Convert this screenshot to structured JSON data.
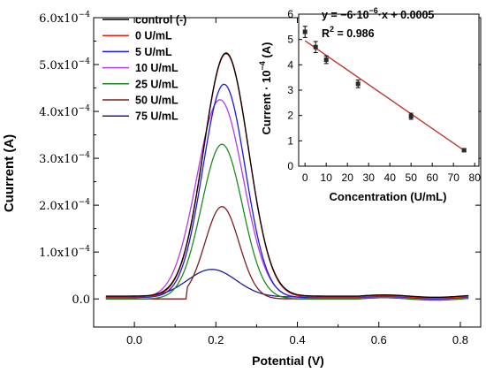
{
  "chart_data": [
    {
      "type": "line",
      "xlabel": "Potential (V)",
      "ylabel": "Cuurrent (A)",
      "xlim": [
        -0.1,
        0.85
      ],
      "ylim": [
        -6e-05,
        0.0006
      ],
      "xticks": [
        0.0,
        0.2,
        0.4,
        0.6,
        0.8
      ],
      "xtick_labels": [
        "0.0",
        "0.2",
        "0.4",
        "0.6",
        "0.8"
      ],
      "yticks": [
        0.0,
        0.0001,
        0.0002,
        0.0003,
        0.0004,
        0.0005,
        0.0006
      ],
      "ytick_labels": [
        {
          "mantissa": "0.0",
          "exponent": ""
        },
        {
          "mantissa": "1.0x10",
          "exponent": "−4"
        },
        {
          "mantissa": "2.0x10",
          "exponent": "−4"
        },
        {
          "mantissa": "3.0x10",
          "exponent": "−4"
        },
        {
          "mantissa": "4.0x10",
          "exponent": "−4"
        },
        {
          "mantissa": "5.0x10",
          "exponent": "−4"
        },
        {
          "mantissa": "6.0x10",
          "exponent": "−4"
        }
      ],
      "legend_position": "top-left",
      "series": [
        {
          "name": "control (-)",
          "color": "#000000",
          "peak_x": 0.225,
          "peak_y": 0.000525,
          "width": 0.055,
          "left_edge": -0.07,
          "baseline": 6e-06,
          "tail_y": 0.0
        },
        {
          "name": "0 U/mL",
          "color": "#e8220f",
          "peak_x": 0.225,
          "peak_y": 0.000523,
          "width": 0.055,
          "left_edge": -0.07,
          "baseline": 4e-06,
          "tail_y": 0.0
        },
        {
          "name": "5 U/mL",
          "color": "#1a1ae6",
          "peak_x": 0.22,
          "peak_y": 0.000458,
          "width": 0.052,
          "left_edge": -0.07,
          "baseline": 3e-06,
          "tail_y": 0.0
        },
        {
          "name": "10 U/mL",
          "color": "#b33ce6",
          "peak_x": 0.21,
          "peak_y": 0.000425,
          "width": 0.057,
          "left_edge": -0.07,
          "baseline": 2e-06,
          "tail_y": 0.0
        },
        {
          "name": "25 U/mL",
          "color": "#1f8a1f",
          "peak_x": 0.215,
          "peak_y": 0.00033,
          "width": 0.05,
          "left_edge": 0.0,
          "baseline": 0.0,
          "tail_y": 0.0
        },
        {
          "name": "50 U/mL",
          "color": "#7a1f1f",
          "peak_x": 0.215,
          "peak_y": 0.000197,
          "width": 0.042,
          "left_edge": 0.13,
          "baseline": 0.0,
          "tail_y": 0.0
        },
        {
          "name": "75 U/mL",
          "color": "#1f1f8a",
          "peak_x": 0.19,
          "peak_y": 6.3e-05,
          "width": 0.06,
          "left_edge": -0.07,
          "baseline": 4e-06,
          "tail_y": 0.0
        }
      ]
    },
    {
      "type": "scatter",
      "xlabel": "Concentration (U/mL)",
      "ylabel_main": "Current · 10",
      "ylabel_exponent": "−4",
      "ylabel_unit": " (A)",
      "xlim": [
        -3,
        82
      ],
      "ylim": [
        0,
        6
      ],
      "xticks": [
        0,
        10,
        20,
        30,
        40,
        50,
        60,
        70,
        80
      ],
      "yticks": [
        0,
        1,
        2,
        3,
        4,
        5,
        6
      ],
      "x": [
        0,
        5,
        10,
        25,
        50,
        75
      ],
      "y": [
        5.3,
        4.7,
        4.2,
        3.25,
        1.97,
        0.63
      ],
      "yerr": [
        0.22,
        0.22,
        0.15,
        0.15,
        0.12,
        0.05
      ],
      "marker_color": "#2a2a2a",
      "fit": {
        "color": "#c0392b",
        "x": [
          0,
          75
        ],
        "y": [
          4.95,
          0.62
        ],
        "equation_prefix": "y = −6·10",
        "equation_exponent": "−6",
        "equation_suffix": "·x + 0.0005",
        "r2_label": "R",
        "r2_exponent": "2",
        "r2_value": " = 0.986"
      }
    }
  ]
}
